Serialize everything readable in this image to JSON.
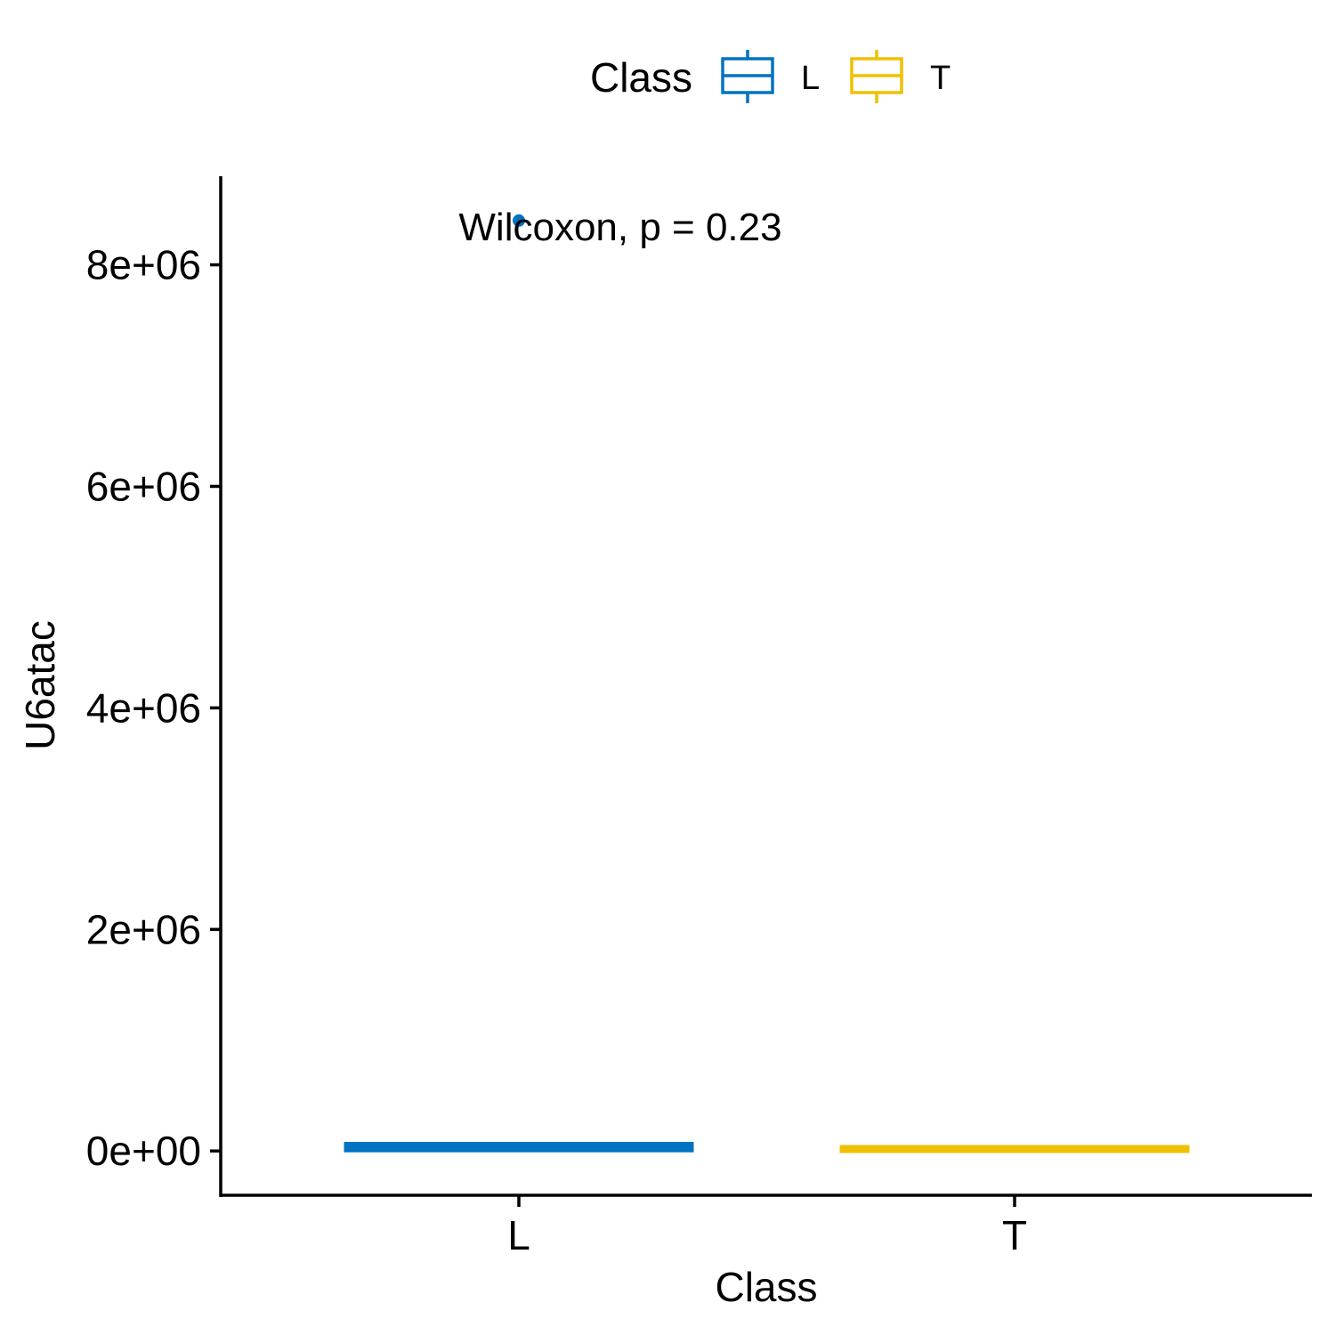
{
  "chart_data": {
    "type": "box",
    "xlabel": "Class",
    "ylabel": "U6atac",
    "categories": [
      "L",
      "T"
    ],
    "ylim": [
      -400000,
      8800000
    ],
    "yticks": [
      0,
      2000000,
      4000000,
      6000000,
      8000000
    ],
    "ytick_labels": [
      "0e+00",
      "2e+06",
      "4e+06",
      "6e+06",
      "8e+06"
    ],
    "legend": {
      "title": "Class",
      "position": "top",
      "entries": [
        {
          "label": "L",
          "color": "#0073C2"
        },
        {
          "label": "T",
          "color": "#EFC000"
        }
      ]
    },
    "series": [
      {
        "name": "L",
        "color": "#0073C2",
        "q1": 0,
        "median": 50000,
        "q3": 70000,
        "whisker_low": 0,
        "whisker_high": 70000,
        "outliers": [
          8400000
        ]
      },
      {
        "name": "T",
        "color": "#EFC000",
        "q1": 0,
        "median": 25000,
        "q3": 35000,
        "whisker_low": 0,
        "whisker_high": 35000,
        "outliers": []
      }
    ],
    "annotation": "Wilcoxon, p = 0.23",
    "annotation_x": "L",
    "annotation_y": 8350000,
    "grid": false
  }
}
